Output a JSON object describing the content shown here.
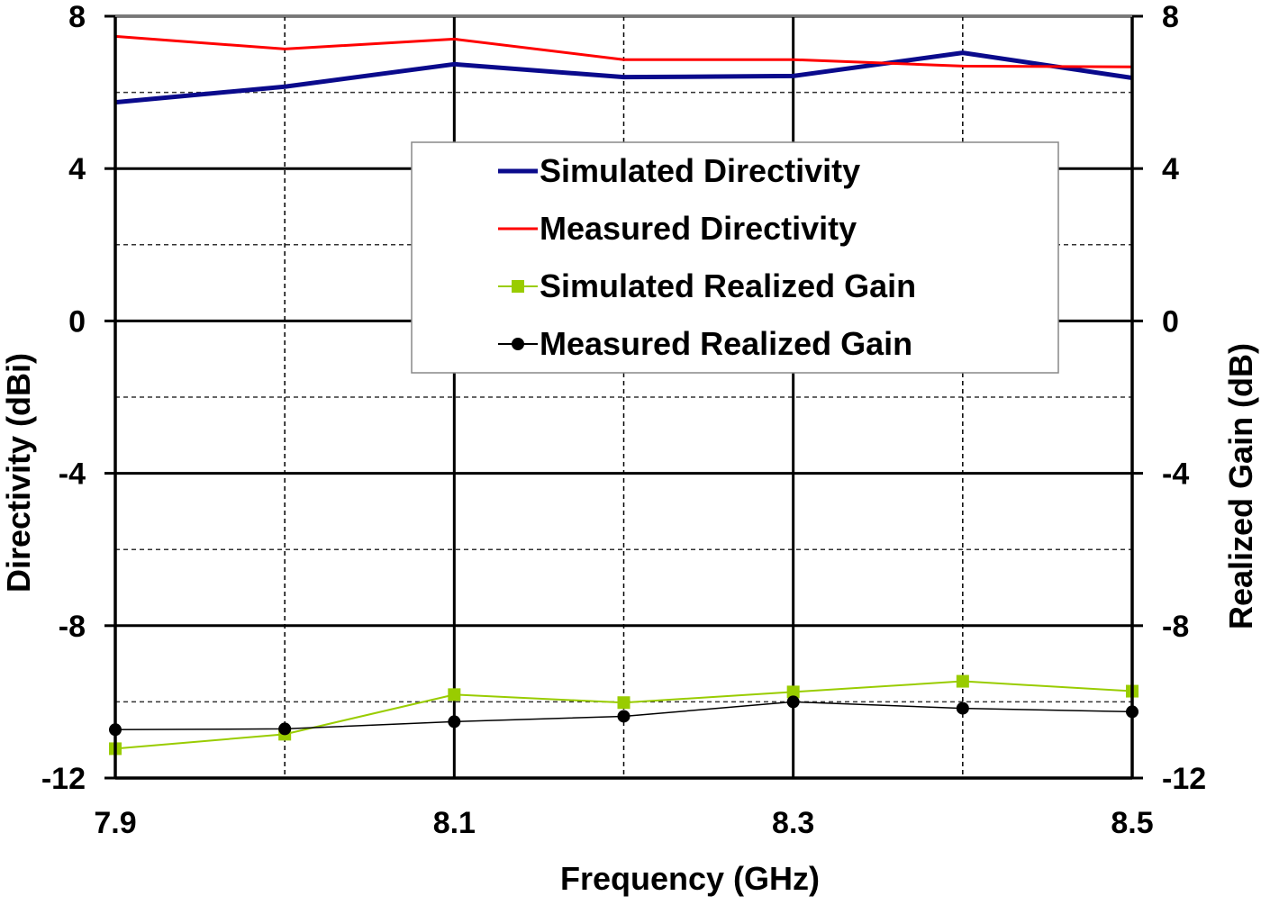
{
  "chart_data": {
    "type": "line",
    "title": "",
    "xlabel": "Frequency (GHz)",
    "ylabel": "Directivity (dBi)",
    "y2label": "Realized Gain (dB)",
    "xlim": [
      7.9,
      8.5
    ],
    "ylim": [
      -12,
      8
    ],
    "y2lim": [
      -12,
      8
    ],
    "x_ticks": [
      "7.9",
      "8.1",
      "8.3",
      "8.5"
    ],
    "y_ticks": [
      "8",
      "4",
      "0",
      "-4",
      "-8",
      "-12"
    ],
    "grid": true,
    "legend_position": "upper-center",
    "x": [
      7.9,
      8.0,
      8.1,
      8.2,
      8.3,
      8.4,
      8.5
    ],
    "series": [
      {
        "name": "Simulated Directivity",
        "color": "#0a0a8c",
        "marker": "none",
        "values": [
          5.74,
          6.15,
          6.74,
          6.4,
          6.43,
          7.04,
          6.38
        ]
      },
      {
        "name": "Measured Directivity",
        "color": "#ff0000",
        "marker": "none",
        "values": [
          7.47,
          7.14,
          7.4,
          6.86,
          6.86,
          6.69,
          6.67
        ]
      },
      {
        "name": "Simulated Realized Gain",
        "color": "#99cc00",
        "marker": "square",
        "values": [
          -11.23,
          -10.85,
          -9.81,
          -10.02,
          -9.74,
          -9.46,
          -9.72
        ]
      },
      {
        "name": "Measured Realized Gain",
        "color": "#000000",
        "marker": "circle",
        "values": [
          -10.73,
          -10.71,
          -10.52,
          -10.38,
          -10.0,
          -10.17,
          -10.26
        ]
      }
    ]
  }
}
